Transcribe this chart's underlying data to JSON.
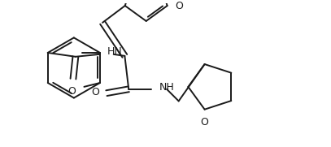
{
  "bg_color": "#ffffff",
  "line_color": "#1a1a1a",
  "line_width": 1.4,
  "fig_width": 4.07,
  "fig_height": 1.81,
  "dpi": 100,
  "xlim": [
    0,
    407
  ],
  "ylim": [
    0,
    181
  ]
}
